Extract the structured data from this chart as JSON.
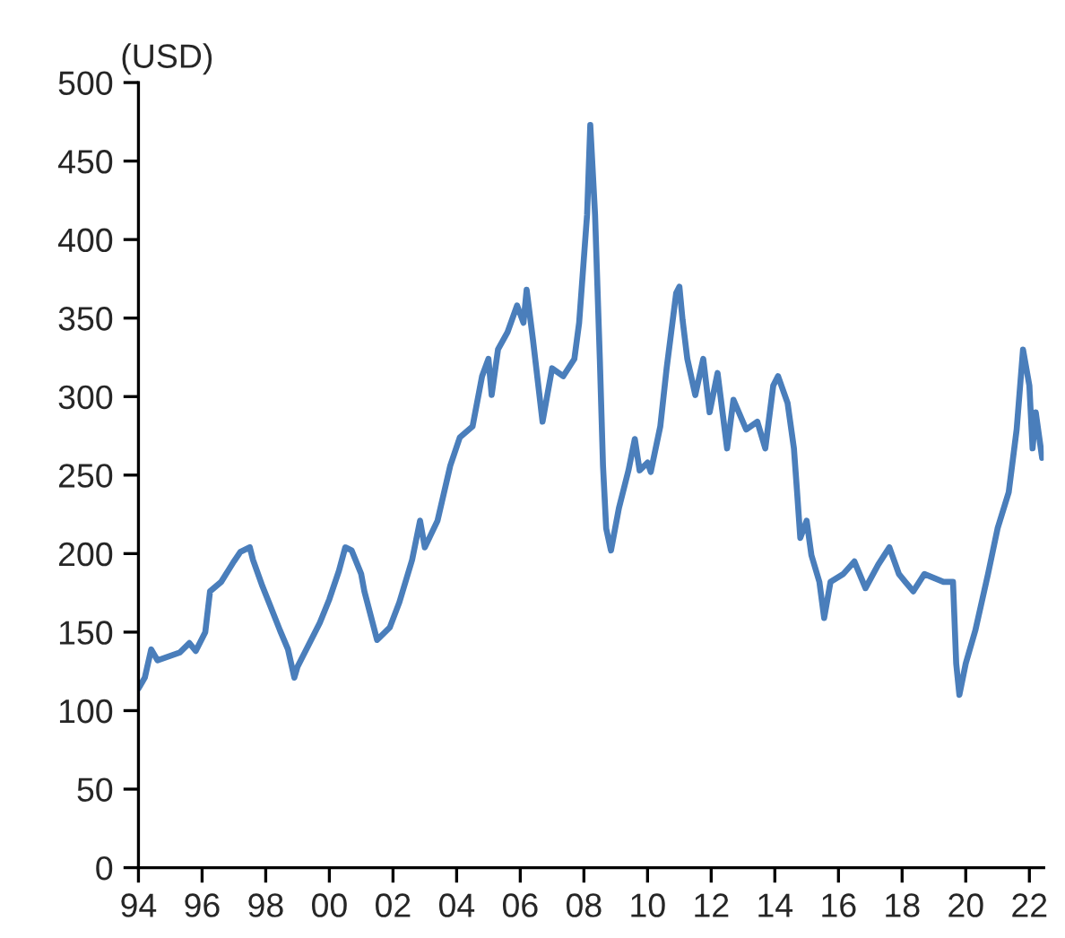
{
  "chart_data": {
    "type": "line",
    "ylabel": "(USD)",
    "x": [
      1994.0,
      1994.2,
      1994.4,
      1994.6,
      1995.3,
      1995.6,
      1995.8,
      1996.1,
      1996.25,
      1996.6,
      1997.0,
      1997.2,
      1997.5,
      1997.6,
      1997.9,
      1998.1,
      1998.45,
      1998.7,
      1998.9,
      1999.0,
      1999.45,
      1999.7,
      2000.0,
      2000.3,
      2000.5,
      2000.7,
      2001.0,
      2001.1,
      2001.5,
      2001.9,
      2002.2,
      2002.6,
      2002.85,
      2003.0,
      2003.4,
      2003.8,
      2004.1,
      2004.5,
      2004.8,
      2005.0,
      2005.1,
      2005.3,
      2005.6,
      2005.9,
      2006.1,
      2006.2,
      2006.4,
      2006.7,
      2007.0,
      2007.35,
      2007.7,
      2007.85,
      2008.1,
      2008.2,
      2008.35,
      2008.5,
      2008.6,
      2008.7,
      2008.85,
      2009.1,
      2009.4,
      2009.6,
      2009.75,
      2010.0,
      2010.1,
      2010.4,
      2010.6,
      2010.9,
      2011.0,
      2011.1,
      2011.25,
      2011.5,
      2011.75,
      2011.95,
      2012.2,
      2012.5,
      2012.7,
      2013.1,
      2013.45,
      2013.7,
      2013.95,
      2014.1,
      2014.4,
      2014.6,
      2014.7,
      2014.8,
      2015.0,
      2015.15,
      2015.4,
      2015.55,
      2015.75,
      2016.15,
      2016.5,
      2016.85,
      2017.25,
      2017.6,
      2017.9,
      2018.1,
      2018.35,
      2018.7,
      2019.3,
      2019.6,
      2019.7,
      2019.8,
      2020.0,
      2020.3,
      2020.7,
      2021.0,
      2021.35,
      2021.6,
      2021.8,
      2022.0,
      2022.1,
      2022.2,
      2022.4
    ],
    "series": [
      {
        "color": "#4a7ebb",
        "values": [
          114,
          121,
          139,
          132,
          137,
          143,
          138,
          150,
          176,
          182,
          195,
          201,
          204,
          196,
          179,
          169,
          151,
          139,
          121,
          128,
          146,
          156,
          171,
          189,
          204,
          202,
          187,
          176,
          145,
          153,
          169,
          196,
          221,
          204,
          221,
          256,
          274,
          281,
          313,
          324,
          301,
          330,
          341,
          358,
          347,
          368,
          336,
          284,
          318,
          313,
          324,
          347,
          416,
          473,
          416,
          324,
          256,
          216,
          202,
          229,
          253,
          273,
          253,
          258,
          252,
          281,
          318,
          366,
          370,
          349,
          324,
          301,
          324,
          290,
          315,
          267,
          298,
          279,
          284,
          267,
          307,
          313,
          296,
          267,
          239,
          210,
          221,
          199,
          182,
          159,
          182,
          187,
          195,
          178,
          193,
          204,
          187,
          182,
          176,
          187,
          182,
          182,
          130,
          110,
          130,
          151,
          187,
          216,
          239,
          279,
          330,
          307,
          267,
          290,
          261
        ]
      }
    ],
    "xlim": [
      1994,
      2022.45
    ],
    "xticks": [
      {
        "value": 1994,
        "label": "94"
      },
      {
        "value": 1996,
        "label": "96"
      },
      {
        "value": 1998,
        "label": "98"
      },
      {
        "value": 2000,
        "label": "00"
      },
      {
        "value": 2002,
        "label": "02"
      },
      {
        "value": 2004,
        "label": "04"
      },
      {
        "value": 2006,
        "label": "06"
      },
      {
        "value": 2008,
        "label": "08"
      },
      {
        "value": 2010,
        "label": "10"
      },
      {
        "value": 2012,
        "label": "12"
      },
      {
        "value": 2014,
        "label": "14"
      },
      {
        "value": 2016,
        "label": "16"
      },
      {
        "value": 2018,
        "label": "18"
      },
      {
        "value": 2020,
        "label": "20"
      },
      {
        "value": 2022,
        "label": "22"
      }
    ],
    "ylim": [
      0,
      500
    ],
    "yticks": [
      0,
      50,
      100,
      150,
      200,
      250,
      300,
      350,
      400,
      450,
      500
    ],
    "grid": false,
    "legend": false
  }
}
